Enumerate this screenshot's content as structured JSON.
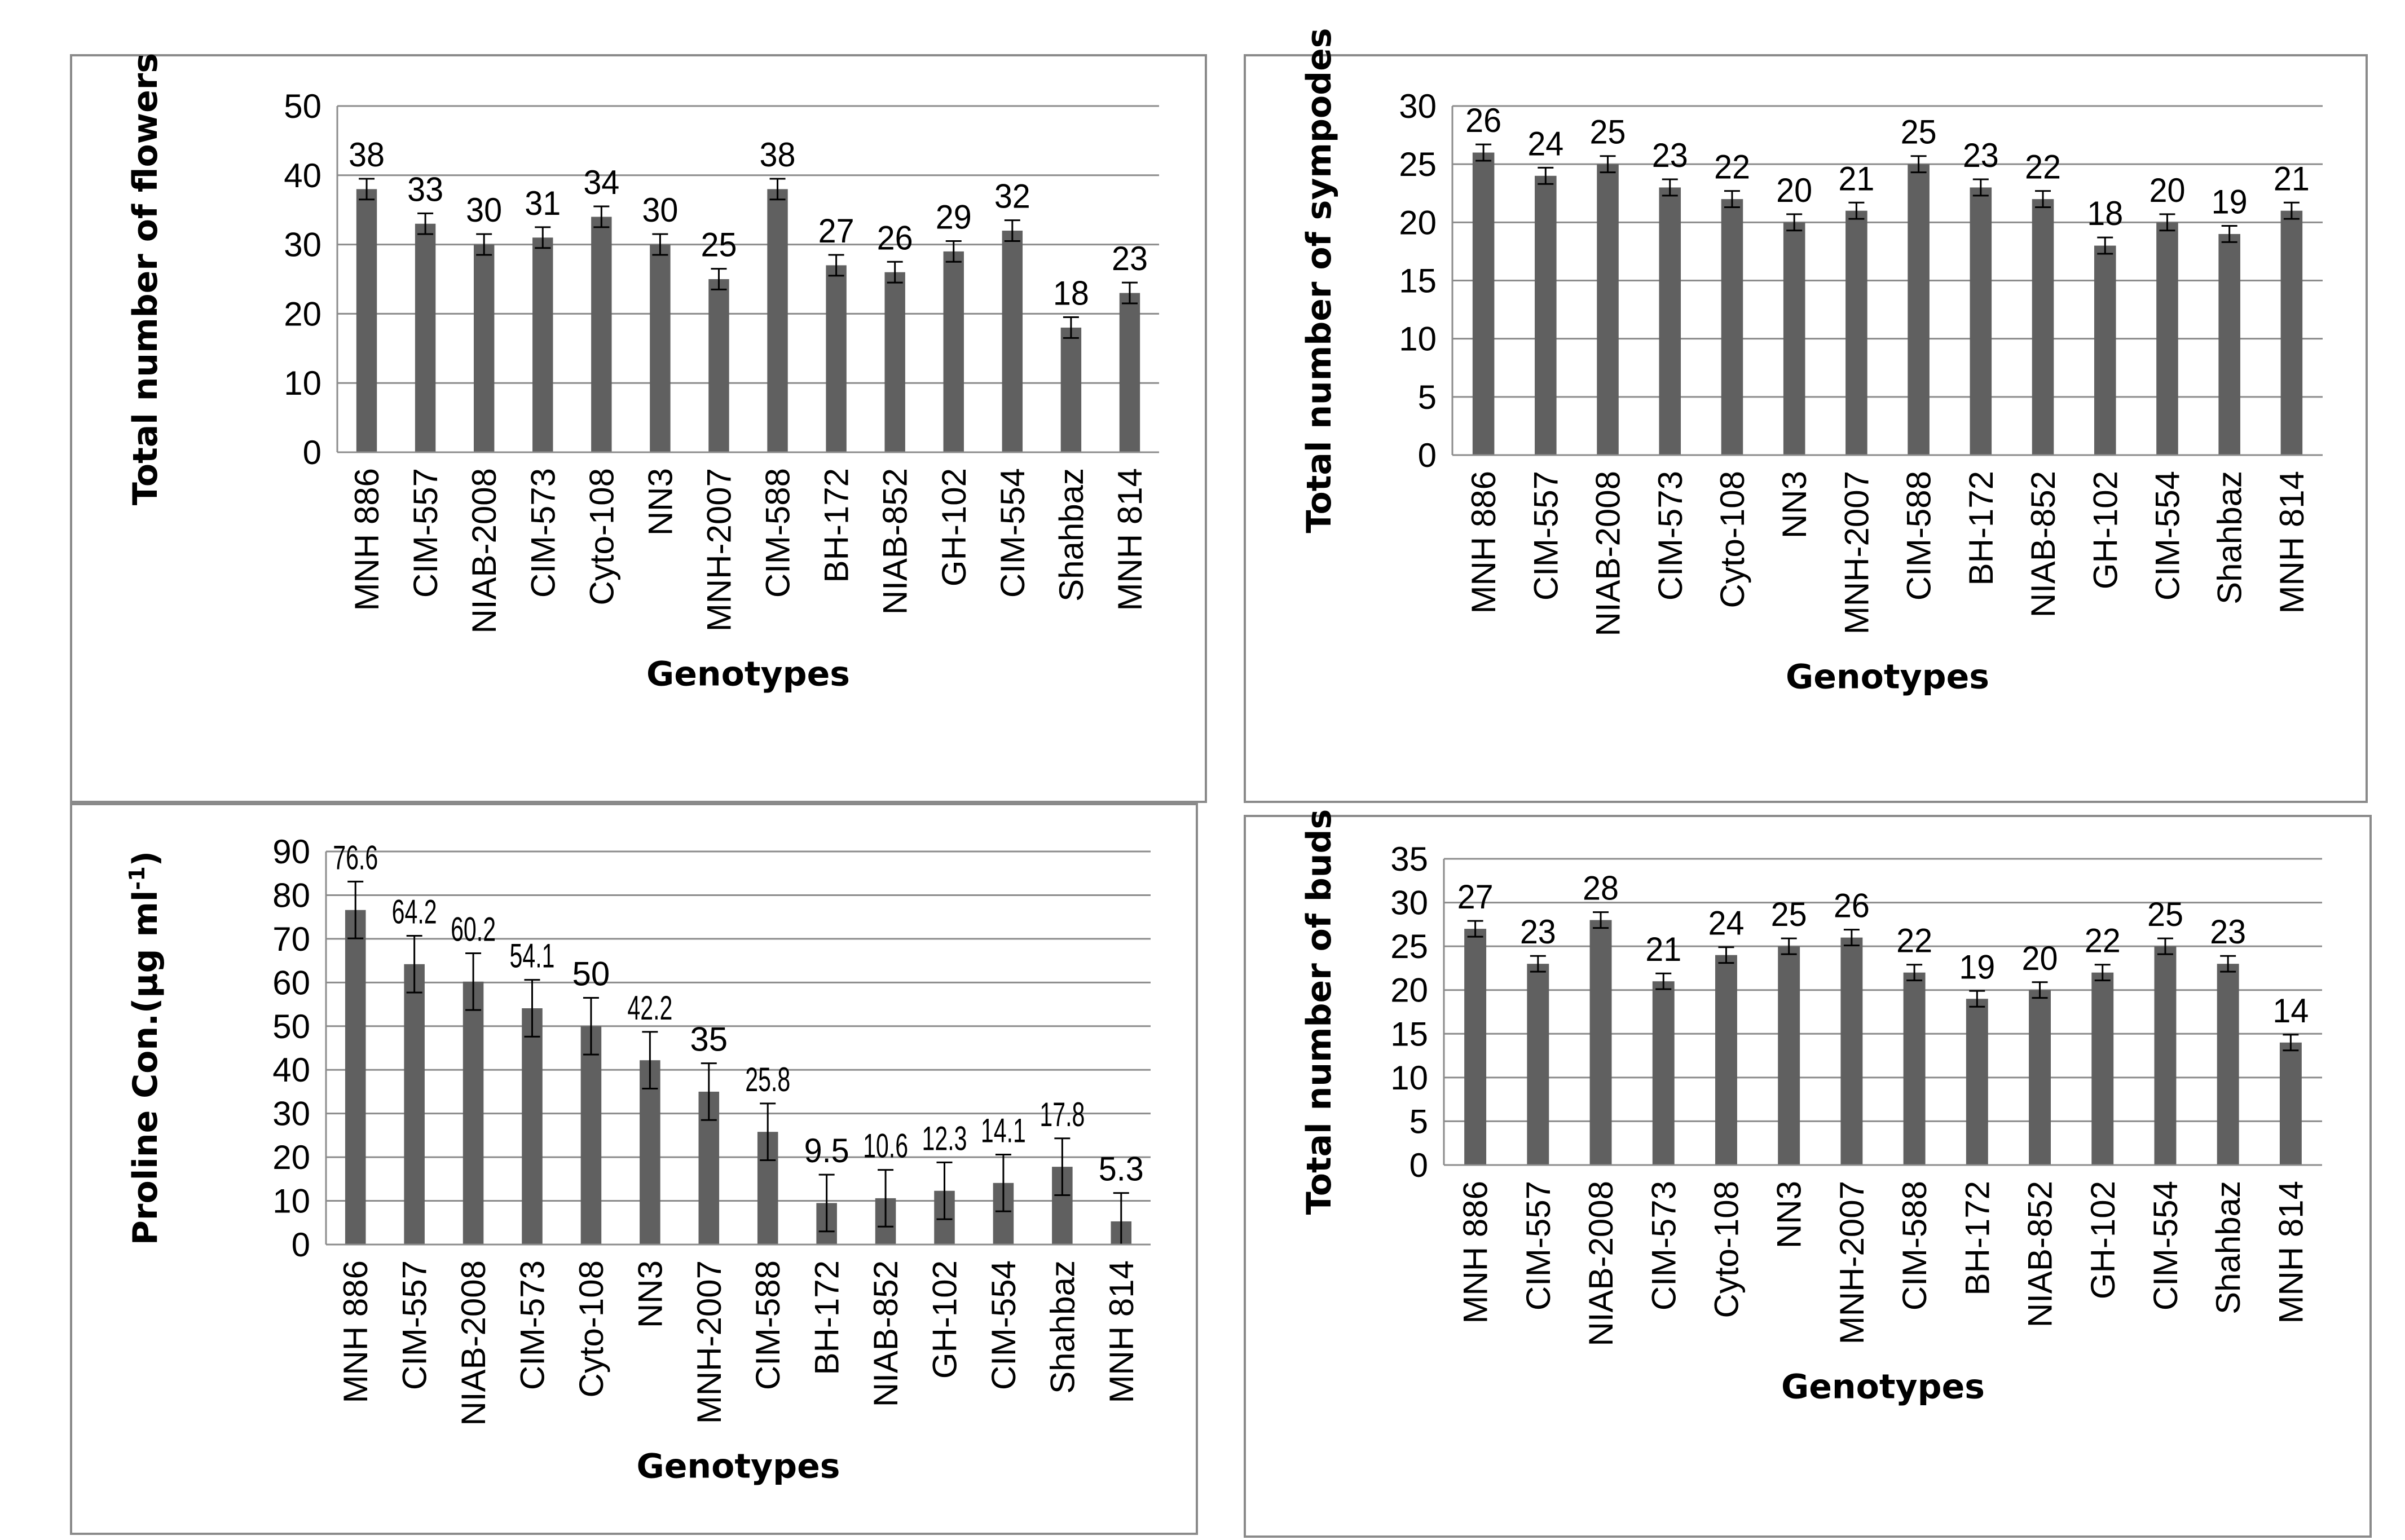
{
  "chart_data": [
    {
      "id": "flowers",
      "type": "bar",
      "title": "",
      "xlabel": "Genotypes",
      "ylabel": "Total number of flowers",
      "ylim": [
        0,
        50
      ],
      "yticks": [
        0,
        10,
        20,
        30,
        40,
        50
      ],
      "grid": true,
      "bar_color": "#606060",
      "categories": [
        "MNH 886",
        "CIM-557",
        "NIAB-2008",
        "CIM-573",
        "Cyto-108",
        "NN3",
        "MNH-2007",
        "CIM-588",
        "BH-172",
        "NIAB-852",
        "GH-102",
        "CIM-554",
        "Shahbaz",
        "MNH 814"
      ],
      "values": [
        38,
        33,
        30,
        31,
        34,
        30,
        25,
        38,
        27,
        26,
        29,
        32,
        18,
        23
      ],
      "value_labels": [
        "38",
        "33",
        "30",
        "31",
        "34",
        "30",
        "25",
        "38",
        "27",
        "26",
        "29",
        "32",
        "18",
        "23"
      ],
      "error": [
        1.5,
        1.5,
        1.5,
        1.5,
        1.5,
        1.5,
        1.5,
        1.5,
        1.5,
        1.5,
        1.5,
        1.5,
        1.5,
        1.5
      ]
    },
    {
      "id": "sympodes",
      "type": "bar",
      "title": "",
      "xlabel": "Genotypes",
      "ylabel": "Total number of sympodes",
      "ylim": [
        0,
        30
      ],
      "yticks": [
        0,
        5,
        10,
        15,
        20,
        25,
        30
      ],
      "grid": true,
      "bar_color": "#606060",
      "categories": [
        "MNH 886",
        "CIM-557",
        "NIAB-2008",
        "CIM-573",
        "Cyto-108",
        "NN3",
        "MNH-2007",
        "CIM-588",
        "BH-172",
        "NIAB-852",
        "GH-102",
        "CIM-554",
        "Shahbaz",
        "MNH 814"
      ],
      "values": [
        26,
        24,
        25,
        23,
        22,
        20,
        21,
        25,
        23,
        22,
        18,
        20,
        19,
        21
      ],
      "value_labels": [
        "26",
        "24",
        "25",
        "23",
        "22",
        "20",
        "21",
        "25",
        "23",
        "22",
        "18",
        "20",
        "19",
        "21"
      ],
      "error": [
        0.7,
        0.7,
        0.7,
        0.7,
        0.7,
        0.7,
        0.7,
        0.7,
        0.7,
        0.7,
        0.7,
        0.7,
        0.7,
        0.7
      ]
    },
    {
      "id": "proline",
      "type": "bar",
      "title": "",
      "xlabel": "Genotypes",
      "ylabel": "Proline Con.(µg ml",
      "ylabel_sup": "-1",
      "ylabel_end": ")",
      "ylim": [
        0,
        90
      ],
      "yticks": [
        0,
        10,
        20,
        30,
        40,
        50,
        60,
        70,
        80,
        90
      ],
      "grid": true,
      "bar_color": "#606060",
      "categories": [
        "MNH 886",
        "CIM-557",
        "NIAB-2008",
        "CIM-573",
        "Cyto-108",
        "NN3",
        "MNH-2007",
        "CIM-588",
        "BH-172",
        "NIAB-852",
        "GH-102",
        "CIM-554",
        "Shahbaz",
        "MNH 814"
      ],
      "values": [
        76.6,
        64.2,
        60.2,
        54.1,
        50,
        42.2,
        35,
        25.8,
        9.5,
        10.6,
        12.3,
        14.1,
        17.8,
        5.3
      ],
      "value_labels": [
        "76.6",
        "64.2",
        "60.2",
        "54.1",
        "50",
        "42.2",
        "35",
        "25.8",
        "9.5",
        "10.6",
        "12.3",
        "14.1",
        "17.8",
        "5.3"
      ],
      "error": [
        6.5,
        6.5,
        6.5,
        6.5,
        6.5,
        6.5,
        6.5,
        6.5,
        6.5,
        6.5,
        6.5,
        6.5,
        6.5,
        6.5
      ]
    },
    {
      "id": "buds",
      "type": "bar",
      "title": "",
      "xlabel": "Genotypes",
      "ylabel": "Total number of buds",
      "ylim": [
        0,
        35
      ],
      "yticks": [
        0,
        5,
        10,
        15,
        20,
        25,
        30,
        35
      ],
      "grid": true,
      "bar_color": "#606060",
      "categories": [
        "MNH 886",
        "CIM-557",
        "NIAB-2008",
        "CIM-573",
        "Cyto-108",
        "NN3",
        "MNH-2007",
        "CIM-588",
        "BH-172",
        "NIAB-852",
        "GH-102",
        "CIM-554",
        "Shahbaz",
        "MNH 814"
      ],
      "values": [
        27,
        23,
        28,
        21,
        24,
        25,
        26,
        22,
        19,
        20,
        22,
        25,
        23,
        14
      ],
      "value_labels": [
        "27",
        "23",
        "28",
        "21",
        "24",
        "25",
        "26",
        "22",
        "19",
        "20",
        "22",
        "25",
        "23",
        "14"
      ],
      "error": [
        0.9,
        0.9,
        0.9,
        0.9,
        0.9,
        0.9,
        0.9,
        0.9,
        0.9,
        0.9,
        0.9,
        0.9,
        0.9,
        0.9
      ]
    }
  ]
}
